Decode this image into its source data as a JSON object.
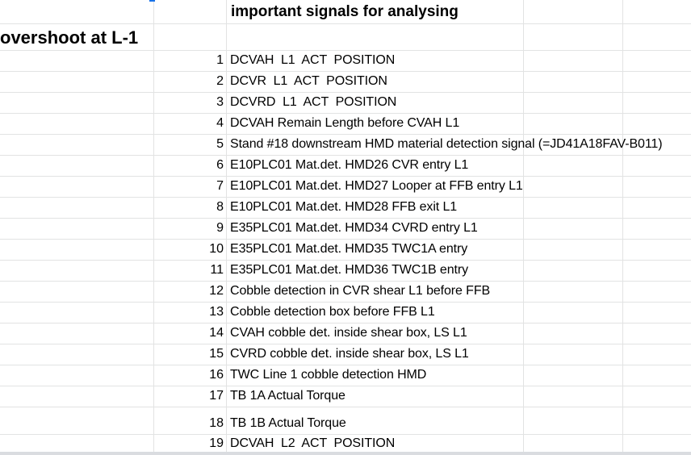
{
  "sheet": {
    "header": "important signals for analysing",
    "section_title": "overshoot at L-1",
    "rows": [
      {
        "num": "1",
        "text": "DCVAH  L1  ACT  POSITION"
      },
      {
        "num": "2",
        "text": "DCVR  L1  ACT  POSITION"
      },
      {
        "num": "3",
        "text": "DCVRD  L1  ACT  POSITION"
      },
      {
        "num": "4",
        "text": "DCVAH Remain Length before CVAH L1"
      },
      {
        "num": "5",
        "text": "Stand #18 downstream HMD material detection signal (=JD41A18FAV-B011)"
      },
      {
        "num": "6",
        "text": "E10PLC01 Mat.det. HMD26 CVR entry L1"
      },
      {
        "num": "7",
        "text": "E10PLC01 Mat.det. HMD27 Looper at FFB entry L1"
      },
      {
        "num": "8",
        "text": "E10PLC01 Mat.det. HMD28 FFB exit L1"
      },
      {
        "num": "9",
        "text": "E35PLC01 Mat.det. HMD34 CVRD entry L1"
      },
      {
        "num": "10",
        "text": "E35PLC01 Mat.det. HMD35 TWC1A entry"
      },
      {
        "num": "11",
        "text": "E35PLC01 Mat.det. HMD36 TWC1B entry"
      },
      {
        "num": "12",
        "text": "Cobble detection in CVR shear L1 before FFB"
      },
      {
        "num": "13",
        "text": "Cobble detection box before FFB L1"
      },
      {
        "num": "14",
        "text": "CVAH cobble det. inside shear box, LS L1"
      },
      {
        "num": "15",
        "text": "CVRD cobble det. inside shear box, LS L1"
      },
      {
        "num": "16",
        "text": "TWC Line 1 cobble detection HMD"
      },
      {
        "num": "17",
        "text": "TB 1A Actual Torque"
      },
      {
        "num": "18",
        "text": "TB 1B Actual Torque"
      },
      {
        "num": "19",
        "text": "DCVAH  L2  ACT  POSITION"
      }
    ]
  }
}
